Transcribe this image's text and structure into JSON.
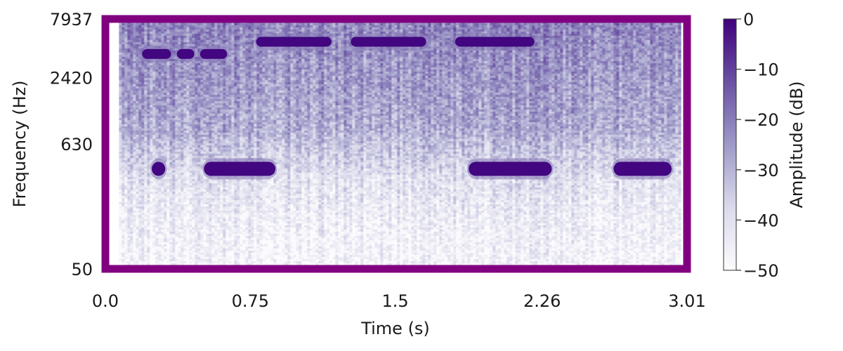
{
  "chart_data": {
    "type": "heatmap",
    "title": "",
    "xlabel": "Time (s)",
    "ylabel": "Frequency (Hz)",
    "colorbar_label": "Amplitude (dB)",
    "colormap": "Purples",
    "frame_color": "#800080",
    "x_ticks": [
      "0.0",
      "0.75",
      "1.5",
      "2.26",
      "3.01"
    ],
    "y_ticks": [
      "50",
      "630",
      "2420",
      "7937"
    ],
    "colorbar_ticks": [
      "0",
      "−10",
      "−20",
      "−30",
      "−40",
      "−50"
    ],
    "xlim": [
      0.0,
      3.01
    ],
    "ylim_hz": [
      50,
      7937
    ],
    "clim_db": [
      -50,
      0
    ],
    "harmonic_bands": [
      {
        "t_start": 0.19,
        "t_end": 0.34,
        "freq_hz": 3900
      },
      {
        "t_start": 0.37,
        "t_end": 0.46,
        "freq_hz": 3900
      },
      {
        "t_start": 0.49,
        "t_end": 0.63,
        "freq_hz": 3900
      },
      {
        "t_start": 0.78,
        "t_end": 1.17,
        "freq_hz": 5000
      },
      {
        "t_start": 1.27,
        "t_end": 1.66,
        "freq_hz": 5000
      },
      {
        "t_start": 1.81,
        "t_end": 2.22,
        "freq_hz": 5000
      }
    ],
    "low_bands": [
      {
        "t_start": 0.24,
        "t_end": 0.31,
        "freq_hz": 380
      },
      {
        "t_start": 0.51,
        "t_end": 0.88,
        "freq_hz": 380
      },
      {
        "t_start": 1.88,
        "t_end": 2.31,
        "freq_hz": 380
      },
      {
        "t_start": 2.63,
        "t_end": 2.93,
        "freq_hz": 380
      }
    ]
  }
}
